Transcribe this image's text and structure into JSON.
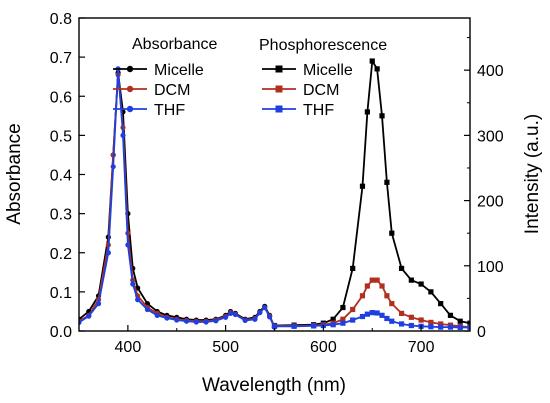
{
  "chart_data": {
    "type": "line",
    "xlabel": "Wavelength (nm)",
    "ylabel_left": "Absorbance",
    "ylabel_right": "Intensity (a.u.)",
    "xlim": [
      350,
      750
    ],
    "ylim_left": [
      0,
      0.8
    ],
    "ylim_right": [
      0,
      480
    ],
    "x_ticks": [
      "400",
      "500",
      "600",
      "700"
    ],
    "y_left_ticks": [
      "0.0",
      "0.1",
      "0.2",
      "0.3",
      "0.4",
      "0.5",
      "0.6",
      "0.7",
      "0.8"
    ],
    "y_right_ticks": [
      "0",
      "100",
      "200",
      "300",
      "400"
    ],
    "legend_absorbance_title": "Absorbance",
    "legend_phosphorescence_title": "Phosphorescence",
    "colors": {
      "micelle": "#000000",
      "dcm": "#b03020",
      "thf": "#1f3fe0"
    },
    "absorbance_series": [
      {
        "name": "Micelle",
        "marker": "circle",
        "points": [
          [
            350,
            0.03
          ],
          [
            360,
            0.05
          ],
          [
            370,
            0.09
          ],
          [
            380,
            0.24
          ],
          [
            385,
            0.45
          ],
          [
            390,
            0.66
          ],
          [
            395,
            0.56
          ],
          [
            400,
            0.3
          ],
          [
            405,
            0.16
          ],
          [
            410,
            0.11
          ],
          [
            420,
            0.07
          ],
          [
            430,
            0.05
          ],
          [
            440,
            0.04
          ],
          [
            450,
            0.035
          ],
          [
            460,
            0.03
          ],
          [
            470,
            0.028
          ],
          [
            480,
            0.028
          ],
          [
            490,
            0.03
          ],
          [
            500,
            0.04
          ],
          [
            505,
            0.05
          ],
          [
            510,
            0.045
          ],
          [
            520,
            0.03
          ],
          [
            530,
            0.035
          ],
          [
            535,
            0.05
          ],
          [
            540,
            0.063
          ],
          [
            545,
            0.04
          ],
          [
            550,
            0.01
          ]
        ]
      },
      {
        "name": "DCM",
        "marker": "circle",
        "points": [
          [
            350,
            0.025
          ],
          [
            360,
            0.04
          ],
          [
            370,
            0.08
          ],
          [
            380,
            0.22
          ],
          [
            385,
            0.45
          ],
          [
            390,
            0.655
          ],
          [
            395,
            0.52
          ],
          [
            400,
            0.25
          ],
          [
            405,
            0.13
          ],
          [
            410,
            0.09
          ],
          [
            420,
            0.06
          ],
          [
            430,
            0.045
          ],
          [
            440,
            0.035
          ],
          [
            450,
            0.03
          ],
          [
            460,
            0.027
          ],
          [
            470,
            0.025
          ],
          [
            480,
            0.025
          ],
          [
            490,
            0.028
          ],
          [
            500,
            0.037
          ],
          [
            505,
            0.047
          ],
          [
            510,
            0.043
          ],
          [
            520,
            0.028
          ],
          [
            530,
            0.032
          ],
          [
            535,
            0.048
          ],
          [
            540,
            0.06
          ],
          [
            545,
            0.038
          ],
          [
            550,
            0.01
          ]
        ]
      },
      {
        "name": "THF",
        "marker": "circle",
        "points": [
          [
            350,
            0.022
          ],
          [
            360,
            0.038
          ],
          [
            370,
            0.07
          ],
          [
            380,
            0.2
          ],
          [
            385,
            0.42
          ],
          [
            390,
            0.67
          ],
          [
            395,
            0.5
          ],
          [
            400,
            0.22
          ],
          [
            405,
            0.12
          ],
          [
            410,
            0.08
          ],
          [
            420,
            0.055
          ],
          [
            430,
            0.04
          ],
          [
            440,
            0.033
          ],
          [
            450,
            0.028
          ],
          [
            460,
            0.025
          ],
          [
            470,
            0.023
          ],
          [
            480,
            0.023
          ],
          [
            490,
            0.026
          ],
          [
            500,
            0.035
          ],
          [
            505,
            0.045
          ],
          [
            510,
            0.042
          ],
          [
            520,
            0.027
          ],
          [
            530,
            0.03
          ],
          [
            535,
            0.047
          ],
          [
            540,
            0.06
          ],
          [
            545,
            0.036
          ],
          [
            550,
            0.01
          ]
        ]
      }
    ],
    "phosphorescence_series": [
      {
        "name": "Micelle",
        "marker": "square",
        "points": [
          [
            550,
            0.014
          ],
          [
            570,
            0.015
          ],
          [
            590,
            0.016
          ],
          [
            600,
            0.02
          ],
          [
            610,
            0.03
          ],
          [
            620,
            0.06
          ],
          [
            630,
            0.16
          ],
          [
            640,
            0.37
          ],
          [
            645,
            0.56
          ],
          [
            650,
            0.69
          ],
          [
            655,
            0.67
          ],
          [
            660,
            0.55
          ],
          [
            665,
            0.38
          ],
          [
            670,
            0.25
          ],
          [
            680,
            0.16
          ],
          [
            690,
            0.13
          ],
          [
            700,
            0.12
          ],
          [
            710,
            0.1
          ],
          [
            720,
            0.07
          ],
          [
            730,
            0.04
          ],
          [
            740,
            0.025
          ],
          [
            750,
            0.02
          ]
        ]
      },
      {
        "name": "DCM",
        "marker": "square",
        "points": [
          [
            550,
            0.013
          ],
          [
            570,
            0.013
          ],
          [
            590,
            0.014
          ],
          [
            600,
            0.016
          ],
          [
            610,
            0.02
          ],
          [
            620,
            0.03
          ],
          [
            630,
            0.055
          ],
          [
            640,
            0.09
          ],
          [
            645,
            0.115
          ],
          [
            650,
            0.13
          ],
          [
            655,
            0.13
          ],
          [
            660,
            0.115
          ],
          [
            665,
            0.09
          ],
          [
            670,
            0.07
          ],
          [
            680,
            0.045
          ],
          [
            690,
            0.035
          ],
          [
            700,
            0.028
          ],
          [
            710,
            0.022
          ],
          [
            720,
            0.018
          ],
          [
            730,
            0.015
          ],
          [
            740,
            0.012
          ],
          [
            750,
            0.01
          ]
        ]
      },
      {
        "name": "THF",
        "marker": "square",
        "points": [
          [
            550,
            0.012
          ],
          [
            570,
            0.012
          ],
          [
            590,
            0.013
          ],
          [
            600,
            0.014
          ],
          [
            610,
            0.016
          ],
          [
            620,
            0.02
          ],
          [
            630,
            0.028
          ],
          [
            640,
            0.037
          ],
          [
            645,
            0.043
          ],
          [
            650,
            0.047
          ],
          [
            655,
            0.046
          ],
          [
            660,
            0.04
          ],
          [
            665,
            0.032
          ],
          [
            670,
            0.025
          ],
          [
            680,
            0.018
          ],
          [
            690,
            0.014
          ],
          [
            700,
            0.012
          ],
          [
            710,
            0.011
          ],
          [
            720,
            0.01
          ],
          [
            730,
            0.01
          ],
          [
            740,
            0.009
          ],
          [
            750,
            0.009
          ]
        ]
      }
    ]
  }
}
